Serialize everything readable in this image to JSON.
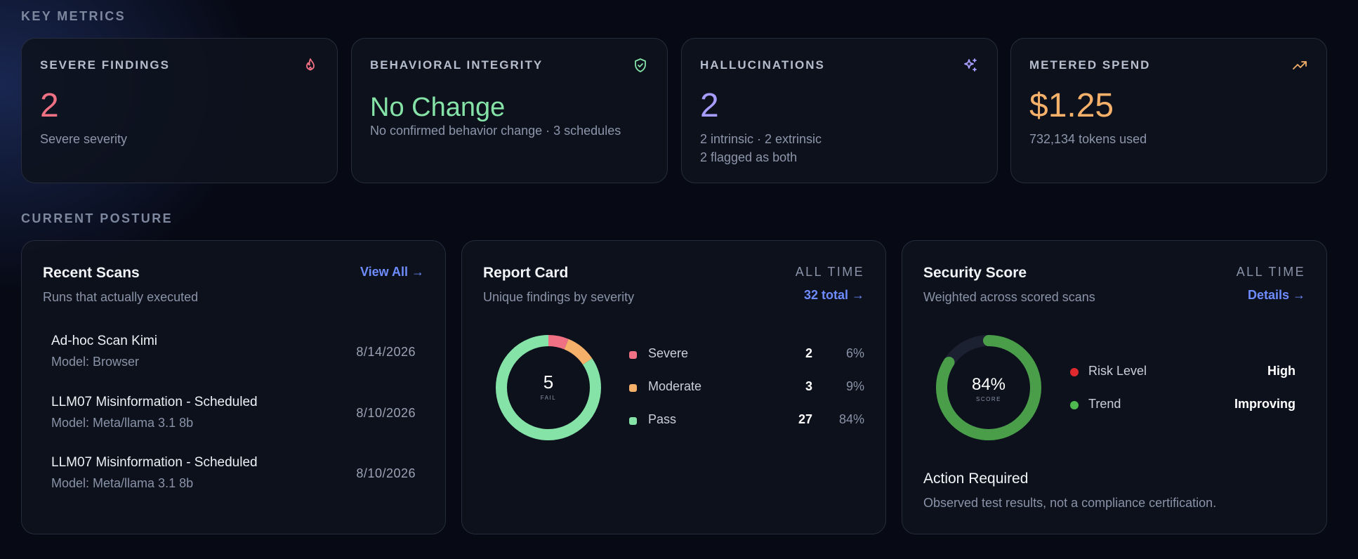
{
  "sections": {
    "key_metrics": "KEY METRICS",
    "current_posture": "CURRENT POSTURE"
  },
  "metrics": [
    {
      "title": "SEVERE FINDINGS",
      "value": "2",
      "lines": [
        "Severe severity"
      ],
      "icon": "flame-icon",
      "color": "#f07183"
    },
    {
      "title": "BEHAVIORAL INTEGRITY",
      "value": "No Change",
      "lines": [
        "No confirmed behavior change · 3 schedules"
      ],
      "icon": "shield-check-icon",
      "color": "#86e3a8"
    },
    {
      "title": "HALLUCINATIONS",
      "value": "2",
      "lines": [
        "2 intrinsic · 2 extrinsic",
        "2 flagged as both"
      ],
      "icon": "sparkles-icon",
      "color": "#a99cff"
    },
    {
      "title": "METERED SPEND",
      "value": "$1.25",
      "lines": [
        "732,134 tokens used"
      ],
      "icon": "trending-up-icon",
      "color": "#f5b06a"
    }
  ],
  "recent_scans": {
    "title": "Recent Scans",
    "subtitle": "Runs that actually executed",
    "link": "View All →",
    "items": [
      {
        "name": "Ad-hoc Scan Kimi",
        "model": "Model: Browser",
        "date": "8/14/2026"
      },
      {
        "name": "LLM07 Misinformation - Scheduled",
        "model": "Model: Meta/llama 3.1 8b",
        "date": "8/10/2026"
      },
      {
        "name": "LLM07 Misinformation - Scheduled",
        "model": "Model: Meta/llama 3.1 8b",
        "date": "8/10/2026"
      }
    ]
  },
  "report_card": {
    "title": "Report Card",
    "subtitle": "Unique findings by severity",
    "tag": "ALL TIME",
    "link": "32 total →",
    "center_value": "5",
    "center_caption": "FAIL",
    "rows": [
      {
        "label": "Severe",
        "count": "2",
        "pct": "6%",
        "value": 2,
        "color": "#f07183"
      },
      {
        "label": "Moderate",
        "count": "3",
        "pct": "9%",
        "value": 3,
        "color": "#f5b06a"
      },
      {
        "label": "Pass",
        "count": "27",
        "pct": "84%",
        "value": 27,
        "color": "#86e3a8"
      }
    ]
  },
  "security_score": {
    "title": "Security Score",
    "subtitle": "Weighted across scored scans",
    "tag": "ALL TIME",
    "link": "Details →",
    "score_text": "84%",
    "score_fraction": 0.84,
    "score_caption": "SCORE",
    "rows": [
      {
        "label": "Risk Level",
        "value": "High",
        "color": "#e0282f"
      },
      {
        "label": "Trend",
        "value": "Improving",
        "color": "#4fb84f"
      }
    ],
    "action_title": "Action Required",
    "action_text": "Observed test results, not a compliance certification."
  }
}
